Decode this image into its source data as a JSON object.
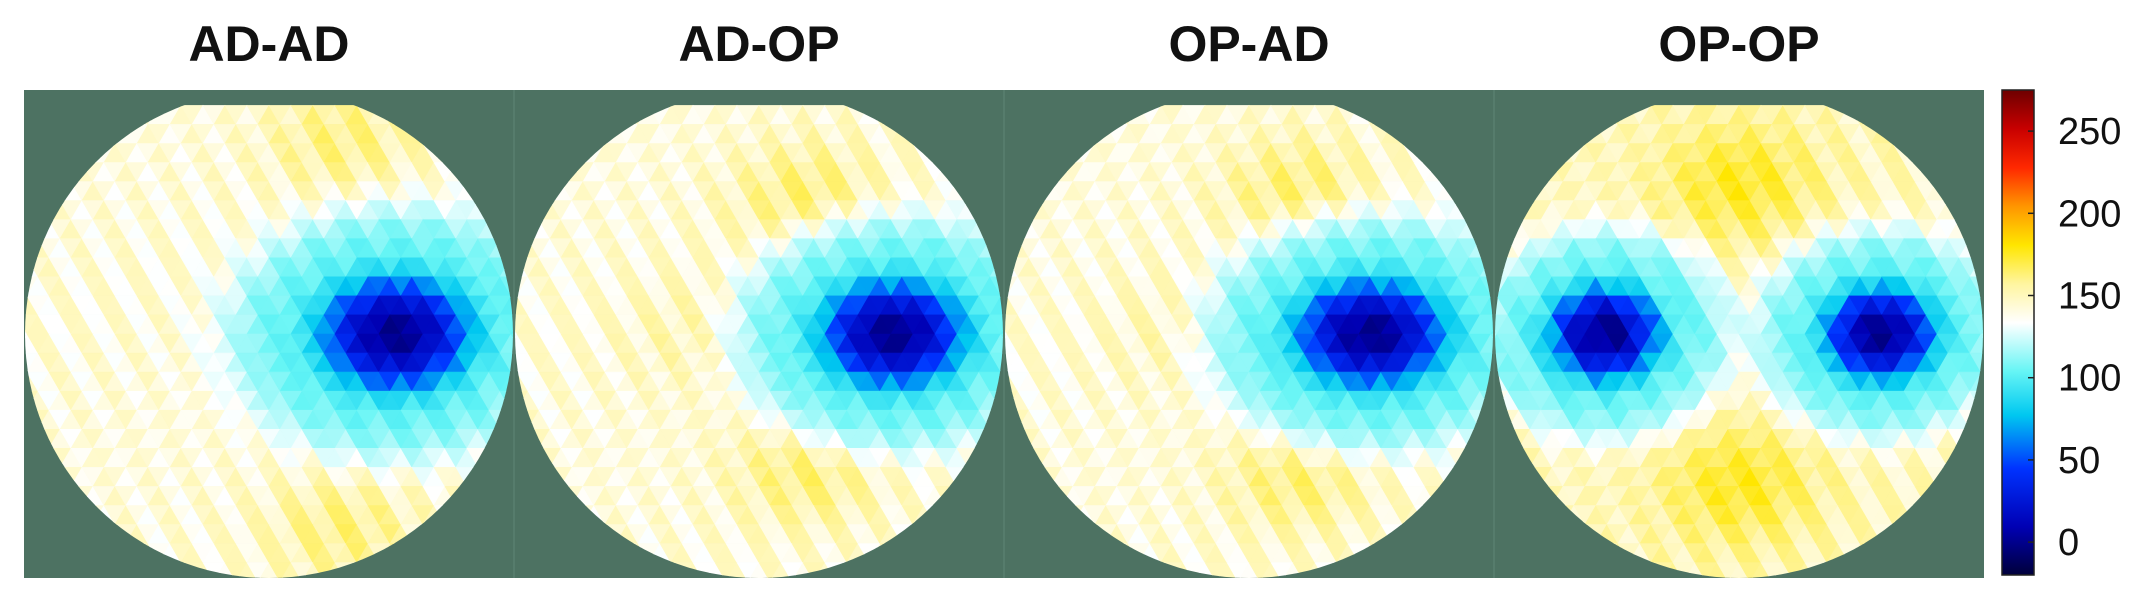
{
  "chart_data": {
    "type": "heatmap",
    "panels": [
      {
        "title": "AD-AD",
        "background": "#4d7262",
        "rim_value": 145,
        "blobs": [
          {
            "cx": 0.52,
            "cy": 0.0,
            "value": 0,
            "rx": 0.4,
            "ry": 0.3,
            "hole_rx": 0.15,
            "hole_ry": 0.1
          }
        ],
        "yellow_patches": [
          {
            "cx": 0.3,
            "cy": 0.8,
            "value": 158
          },
          {
            "cx": 0.3,
            "cy": -0.8,
            "value": 158
          }
        ]
      },
      {
        "title": "AD-OP",
        "background": "#4d7262",
        "rim_value": 145,
        "blobs": [
          {
            "cx": 0.55,
            "cy": 0.0,
            "value": 0,
            "rx": 0.38,
            "ry": 0.28,
            "hole_rx": 0.14,
            "hole_ry": 0.09
          }
        ],
        "yellow_patches": [
          {
            "cx": 0.2,
            "cy": 0.55,
            "value": 160
          },
          {
            "cx": 0.2,
            "cy": -0.55,
            "value": 160
          },
          {
            "cx": -0.25,
            "cy": 0.0,
            "value": 152
          }
        ]
      },
      {
        "title": "OP-AD",
        "background": "#4d7262",
        "rim_value": 145,
        "blobs": [
          {
            "cx": 0.5,
            "cy": 0.0,
            "value": 0,
            "rx": 0.4,
            "ry": 0.28,
            "hole_rx": 0.15,
            "hole_ry": 0.09
          }
        ],
        "yellow_patches": [
          {
            "cx": 0.2,
            "cy": 0.58,
            "value": 160
          },
          {
            "cx": 0.2,
            "cy": -0.58,
            "value": 160
          },
          {
            "cx": -0.25,
            "cy": 0.0,
            "value": 152
          }
        ]
      },
      {
        "title": "OP-OP",
        "background": "#4d7262",
        "rim_value": 150,
        "blobs": [
          {
            "cx": -0.55,
            "cy": 0.0,
            "value": 0,
            "rx": 0.3,
            "ry": 0.25,
            "hole_rx": 0.11,
            "hole_ry": 0.08
          },
          {
            "cx": 0.58,
            "cy": 0.0,
            "value": 0,
            "rx": 0.3,
            "ry": 0.25,
            "hole_rx": 0.11,
            "hole_ry": 0.08
          }
        ],
        "yellow_patches": [
          {
            "cx": 0.0,
            "cy": 0.62,
            "value": 170
          },
          {
            "cx": 0.0,
            "cy": -0.62,
            "value": 170
          }
        ]
      }
    ],
    "colorbar": {
      "colormap": "jet-like with white center",
      "range": [
        -20,
        275
      ],
      "ticks": [
        0,
        50,
        100,
        150,
        200,
        250
      ]
    }
  }
}
